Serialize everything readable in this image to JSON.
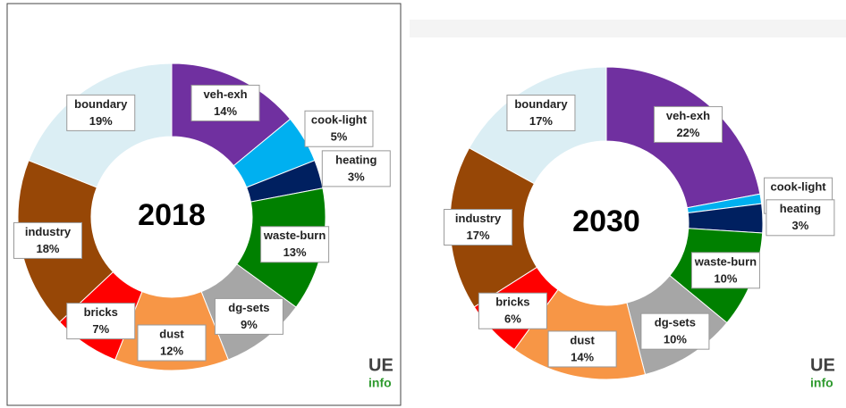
{
  "chart_data": [
    {
      "type": "pie",
      "title": "2018",
      "categories": [
        "veh-exh",
        "cook-light",
        "heating",
        "waste-burn",
        "dg-sets",
        "dust",
        "bricks",
        "industry",
        "boundary"
      ],
      "values": [
        14,
        5,
        3,
        13,
        9,
        12,
        7,
        18,
        19
      ],
      "value_labels": [
        "14%",
        "5%",
        "3%",
        "13%",
        "9%",
        "12%",
        "7%",
        "18%",
        "19%"
      ],
      "colors": [
        "#7030a0",
        "#00b0f0",
        "#002060",
        "#008000",
        "#a6a6a6",
        "#f79646",
        "#ff0000",
        "#974706",
        "#dbeef4"
      ]
    },
    {
      "type": "pie",
      "title": "2030",
      "categories": [
        "veh-exh",
        "cook-light",
        "heating",
        "waste-burn",
        "dg-sets",
        "dust",
        "bricks",
        "industry",
        "boundary"
      ],
      "values": [
        22,
        1,
        3,
        10,
        10,
        14,
        6,
        17,
        17
      ],
      "value_labels": [
        "22%",
        "1%",
        "3%",
        "10%",
        "10%",
        "14%",
        "6%",
        "17%",
        "17%"
      ],
      "colors": [
        "#7030a0",
        "#00b0f0",
        "#002060",
        "#008000",
        "#a6a6a6",
        "#f79646",
        "#ff0000",
        "#974706",
        "#dbeef4"
      ]
    }
  ],
  "logo": {
    "top": "UE",
    "bottom": "info"
  }
}
